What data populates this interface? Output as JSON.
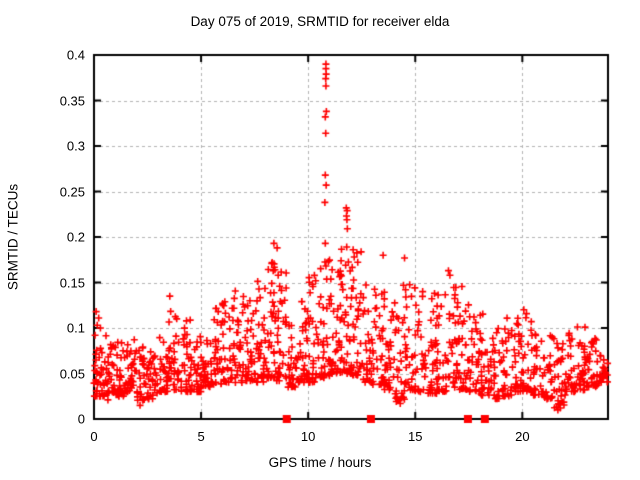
{
  "chart_data": {
    "type": "scatter",
    "title": "Day 075 of 2019, SRMTID for receiver elda",
    "xlabel": "GPS time / hours",
    "ylabel": "SRMTID / TECUs",
    "xlim": [
      0,
      24
    ],
    "ylim": [
      0,
      0.4
    ],
    "xticks": [
      {
        "v": 0,
        "label": "0"
      },
      {
        "v": 5,
        "label": "5"
      },
      {
        "v": 10,
        "label": "10"
      },
      {
        "v": 15,
        "label": "15"
      },
      {
        "v": 20,
        "label": "20"
      }
    ],
    "yticks": [
      {
        "v": 0,
        "label": "0"
      },
      {
        "v": 0.05,
        "label": "0.05"
      },
      {
        "v": 0.1,
        "label": "0.1"
      },
      {
        "v": 0.15,
        "label": "0.15"
      },
      {
        "v": 0.2,
        "label": "0.2"
      },
      {
        "v": 0.25,
        "label": "0.25"
      },
      {
        "v": 0.3,
        "label": "0.3"
      },
      {
        "v": 0.35,
        "label": "0.35"
      },
      {
        "v": 0.4,
        "label": "0.4"
      }
    ],
    "grid": true,
    "legend": "none",
    "marker": {
      "shape": "plus",
      "color": "#ff0000",
      "size": 7
    },
    "frame_color": "#000000",
    "grid_color": "#b3b3b3",
    "background": "#ffffff",
    "seed": 42,
    "cloud_bins_format": "[x_start, y_min, y_max, n_points] per 0.5 hour bin (dense noise band envelope read from plot)",
    "cloud_bins": [
      [
        0.0,
        0.025,
        0.09,
        34
      ],
      [
        0.5,
        0.028,
        0.092,
        32
      ],
      [
        1.0,
        0.025,
        0.085,
        32
      ],
      [
        1.5,
        0.03,
        0.088,
        32
      ],
      [
        2.0,
        0.02,
        0.082,
        32
      ],
      [
        2.5,
        0.022,
        0.078,
        30
      ],
      [
        3.0,
        0.03,
        0.09,
        30
      ],
      [
        3.5,
        0.032,
        0.122,
        32
      ],
      [
        4.0,
        0.03,
        0.112,
        32
      ],
      [
        4.5,
        0.03,
        0.098,
        30
      ],
      [
        5.0,
        0.035,
        0.1,
        30
      ],
      [
        5.5,
        0.038,
        0.122,
        30
      ],
      [
        6.0,
        0.04,
        0.134,
        32
      ],
      [
        6.5,
        0.04,
        0.145,
        32
      ],
      [
        7.0,
        0.042,
        0.132,
        32
      ],
      [
        7.5,
        0.04,
        0.152,
        34
      ],
      [
        8.0,
        0.045,
        0.172,
        36
      ],
      [
        8.5,
        0.042,
        0.168,
        34
      ],
      [
        9.0,
        0.035,
        0.115,
        28
      ],
      [
        9.5,
        0.04,
        0.13,
        30
      ],
      [
        10.0,
        0.04,
        0.158,
        32
      ],
      [
        10.5,
        0.045,
        0.185,
        36
      ],
      [
        11.0,
        0.05,
        0.172,
        36
      ],
      [
        11.5,
        0.05,
        0.19,
        36
      ],
      [
        12.0,
        0.048,
        0.186,
        34
      ],
      [
        12.5,
        0.04,
        0.16,
        28
      ],
      [
        13.0,
        0.038,
        0.15,
        30
      ],
      [
        13.5,
        0.032,
        0.145,
        30
      ],
      [
        14.0,
        0.018,
        0.132,
        28
      ],
      [
        14.5,
        0.032,
        0.15,
        28
      ],
      [
        15.0,
        0.03,
        0.142,
        28
      ],
      [
        15.5,
        0.028,
        0.138,
        28
      ],
      [
        16.0,
        0.03,
        0.14,
        28
      ],
      [
        16.5,
        0.035,
        0.152,
        30
      ],
      [
        17.0,
        0.032,
        0.148,
        30
      ],
      [
        17.5,
        0.03,
        0.122,
        28
      ],
      [
        18.0,
        0.026,
        0.118,
        28
      ],
      [
        18.5,
        0.022,
        0.102,
        28
      ],
      [
        19.0,
        0.025,
        0.112,
        28
      ],
      [
        19.5,
        0.03,
        0.128,
        28
      ],
      [
        20.0,
        0.03,
        0.118,
        28
      ],
      [
        20.5,
        0.026,
        0.096,
        26
      ],
      [
        21.0,
        0.022,
        0.092,
        26
      ],
      [
        21.5,
        0.012,
        0.086,
        26
      ],
      [
        22.0,
        0.03,
        0.1,
        28
      ],
      [
        22.5,
        0.032,
        0.108,
        30
      ],
      [
        23.0,
        0.035,
        0.092,
        30
      ],
      [
        23.5,
        0.04,
        0.086,
        18
      ]
    ],
    "outliers_format": "[x, y] prominent individual points read from plot",
    "outliers": [
      [
        0.1,
        0.118
      ],
      [
        0.15,
        0.103
      ],
      [
        0.22,
        0.111
      ],
      [
        0.3,
        0.1
      ],
      [
        0.05,
        0.092
      ],
      [
        0.65,
        0.021
      ],
      [
        2.15,
        0.015
      ],
      [
        3.54,
        0.135
      ],
      [
        8.4,
        0.193
      ],
      [
        8.55,
        0.188
      ],
      [
        8.3,
        0.171
      ],
      [
        8.45,
        0.164
      ],
      [
        8.6,
        0.158
      ],
      [
        9.7,
        0.129
      ],
      [
        9.85,
        0.121
      ],
      [
        10.2,
        0.148
      ],
      [
        10.35,
        0.152
      ],
      [
        10.83,
        0.39
      ],
      [
        10.83,
        0.385
      ],
      [
        10.84,
        0.379
      ],
      [
        10.82,
        0.374
      ],
      [
        10.83,
        0.366
      ],
      [
        10.85,
        0.338
      ],
      [
        10.8,
        0.332
      ],
      [
        10.82,
        0.314
      ],
      [
        10.8,
        0.268
      ],
      [
        10.84,
        0.257
      ],
      [
        10.78,
        0.238
      ],
      [
        10.8,
        0.193
      ],
      [
        11.78,
        0.232
      ],
      [
        11.82,
        0.229
      ],
      [
        11.79,
        0.223
      ],
      [
        11.81,
        0.219
      ],
      [
        11.83,
        0.209
      ],
      [
        11.8,
        0.189
      ],
      [
        12.1,
        0.186
      ],
      [
        12.15,
        0.178
      ],
      [
        13.5,
        0.18
      ],
      [
        14.3,
        0.017
      ],
      [
        14.5,
        0.177
      ],
      [
        14.45,
        0.147
      ],
      [
        14.55,
        0.142
      ],
      [
        15.9,
        0.138
      ],
      [
        16.55,
        0.163
      ],
      [
        16.62,
        0.158
      ],
      [
        20.07,
        0.12
      ],
      [
        21.6,
        0.013
      ],
      [
        21.66,
        0.01
      ],
      [
        23.8,
        0.065
      ],
      [
        23.85,
        0.055
      ]
    ],
    "zero_markers_note": "solid red squares sitting on y=0 axis at these x values",
    "zero_markers": [
      9.0,
      12.93,
      17.46,
      18.25
    ]
  }
}
